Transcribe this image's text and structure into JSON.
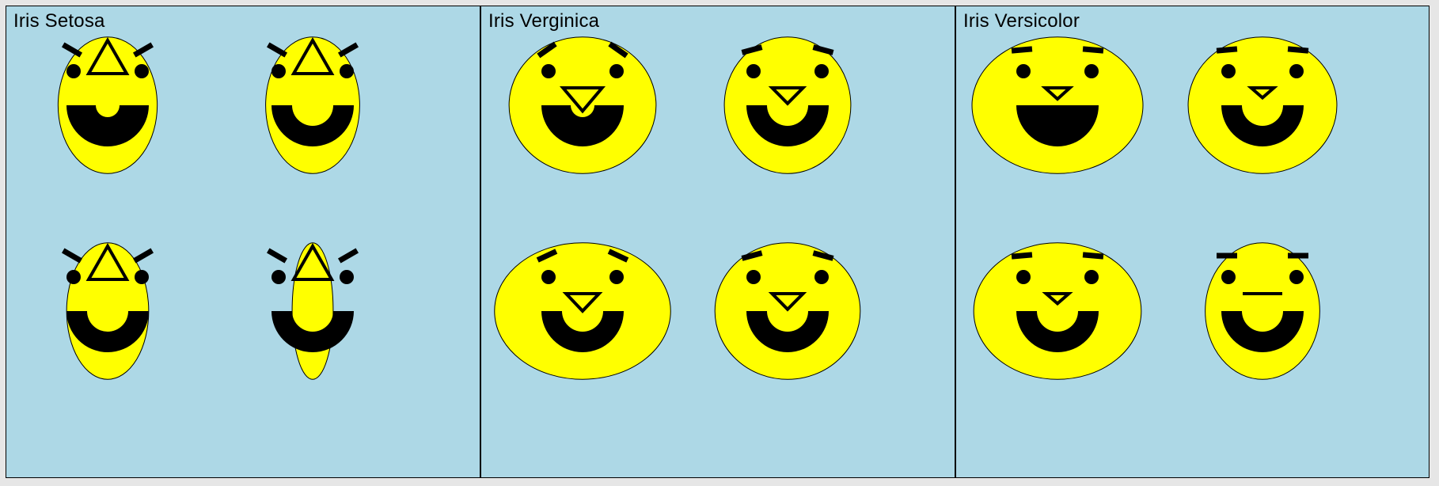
{
  "colors": {
    "background": "#add8e6",
    "face": "#ffff00",
    "feature": "#000000",
    "frame": "#000000"
  },
  "panels": [
    {
      "title": "Iris Setosa",
      "faces": [
        {
          "faceW": 0.58,
          "faceH": 0.98,
          "browAngle": 30,
          "eyeSpread": 0.5,
          "noseUp": true,
          "noseSize": 1.0,
          "mouth": "arc-thick"
        },
        {
          "faceW": 0.55,
          "faceH": 0.98,
          "browAngle": 30,
          "eyeSpread": 0.5,
          "noseUp": true,
          "noseSize": 1.0,
          "mouth": "arc"
        },
        {
          "faceW": 0.48,
          "faceH": 0.98,
          "browAngle": 30,
          "eyeSpread": 0.5,
          "noseUp": true,
          "noseSize": 1.0,
          "mouth": "arc"
        },
        {
          "faceW": 0.24,
          "faceH": 0.98,
          "browAngle": 30,
          "eyeSpread": 0.5,
          "noseUp": true,
          "noseSize": 1.0,
          "mouth": "arc"
        }
      ]
    },
    {
      "title": "Iris Verginica",
      "faces": [
        {
          "faceW": 0.86,
          "faceH": 0.98,
          "browAngle": -35,
          "eyeSpread": 0.5,
          "noseUp": false,
          "noseSize": 0.95,
          "mouth": "arc-thick"
        },
        {
          "faceW": 0.74,
          "faceH": 0.98,
          "browAngle": -15,
          "eyeSpread": 0.5,
          "noseUp": false,
          "noseSize": 0.75,
          "mouth": "arc"
        },
        {
          "faceW": 1.03,
          "faceH": 0.98,
          "browAngle": -25,
          "eyeSpread": 0.5,
          "noseUp": false,
          "noseSize": 0.8,
          "mouth": "arc"
        },
        {
          "faceW": 0.85,
          "faceH": 0.98,
          "browAngle": -15,
          "eyeSpread": 0.5,
          "noseUp": false,
          "noseSize": 0.75,
          "mouth": "arc"
        }
      ]
    },
    {
      "title": "Iris Versicolor",
      "faces": [
        {
          "faceW": 1.0,
          "faceH": 0.98,
          "browAngle": -5,
          "eyeSpread": 0.5,
          "noseUp": false,
          "noseSize": 0.6,
          "mouth": "arc-full"
        },
        {
          "faceW": 0.87,
          "faceH": 0.98,
          "browAngle": -5,
          "eyeSpread": 0.5,
          "noseUp": false,
          "noseSize": 0.55,
          "mouth": "arc"
        },
        {
          "faceW": 0.98,
          "faceH": 0.98,
          "browAngle": -5,
          "eyeSpread": 0.5,
          "noseUp": false,
          "noseSize": 0.55,
          "mouth": "arc"
        },
        {
          "faceW": 0.67,
          "faceH": 0.98,
          "browAngle": 0,
          "eyeSpread": 0.5,
          "noseUp": false,
          "noseSize": 0.0,
          "mouth": "arc"
        }
      ]
    }
  ]
}
